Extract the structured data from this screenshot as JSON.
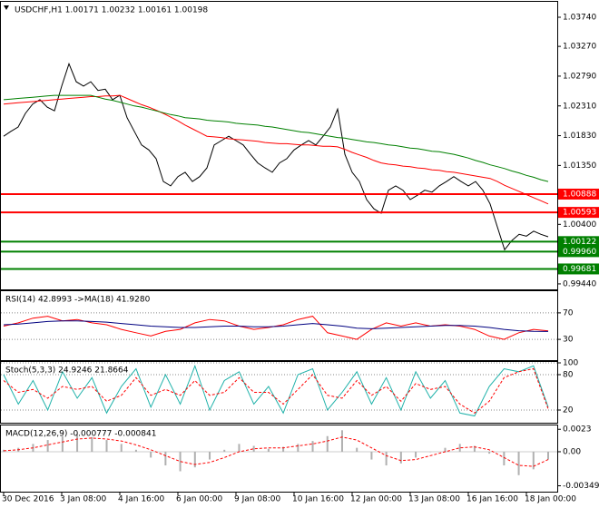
{
  "chart_data": [
    {
      "type": "line",
      "title": "USDCHF,H1  1.00171 1.00232 1.00161 1.00198",
      "categories": [
        "30 Dec 2016",
        null,
        null,
        null,
        null,
        null,
        null,
        null,
        "3 Jan 08:00",
        null,
        null,
        null,
        null,
        null,
        null,
        null,
        "4 Jan 16:00",
        null,
        null,
        null,
        null,
        null,
        null,
        null,
        "6 Jan 00:00",
        null,
        null,
        null,
        null,
        null,
        null,
        null,
        "9 Jan 08:00",
        null,
        null,
        null,
        null,
        null,
        null,
        null,
        "10 Jan 16:00",
        null,
        null,
        null,
        null,
        null,
        null,
        null,
        "12 Jan 00:00",
        null,
        null,
        null,
        null,
        null,
        null,
        null,
        "13 Jan 08:00",
        null,
        null,
        null,
        null,
        null,
        null,
        null,
        "16 Jan 16:00",
        null,
        null,
        null,
        null,
        null,
        null,
        null,
        "18 Jan 00:00",
        null,
        null,
        null
      ],
      "series": [
        {
          "color": "#000000",
          "values": [
            1.0182,
            1.019,
            1.0197,
            1.0219,
            1.0234,
            1.0241,
            1.0229,
            1.0223,
            1.0263,
            1.0299,
            1.027,
            1.0263,
            1.027,
            1.0256,
            1.0258,
            1.0241,
            1.0248,
            1.0212,
            1.019,
            1.0168,
            1.016,
            1.0146,
            1.0109,
            1.0102,
            1.0117,
            1.0124,
            1.0109,
            1.0117,
            1.0131,
            1.0168,
            1.0175,
            1.0182,
            1.0175,
            1.0168,
            1.0153,
            1.0139,
            1.0131,
            1.0124,
            1.0139,
            1.0146,
            1.016,
            1.0168,
            1.0175,
            1.0168,
            1.0182,
            1.0197,
            1.0226,
            1.0153,
            1.0124,
            1.0109,
            1.008,
            1.0065,
            1.0058,
            1.0095,
            1.0102,
            1.0095,
            1.008,
            1.0087,
            1.0095,
            1.0092,
            1.0102,
            1.0109,
            1.0117,
            1.0109,
            1.0102,
            1.0109,
            1.0095,
            1.0073,
            1.0036,
            0.9999,
            1.0014,
            1.0024,
            1.0021,
            1.0029,
            1.0024,
            1.002
          ]
        },
        {
          "color": "#ff0000",
          "values": [
            1.0234,
            1.0235,
            1.0236,
            1.0237,
            1.0238,
            1.0239,
            1.024,
            1.0241,
            1.0242,
            1.0243,
            1.0244,
            1.0245,
            1.0246,
            1.0246,
            1.0247,
            1.0247,
            1.0248,
            1.0243,
            1.0238,
            1.0233,
            1.0229,
            1.0224,
            1.0219,
            1.0213,
            1.0207,
            1.02,
            1.0194,
            1.0188,
            1.0182,
            1.0181,
            1.018,
            1.0178,
            1.0177,
            1.0176,
            1.0175,
            1.0174,
            1.0172,
            1.0171,
            1.017,
            1.017,
            1.0169,
            1.0168,
            1.0168,
            1.0167,
            1.0166,
            1.0166,
            1.0165,
            1.0161,
            1.0156,
            1.0152,
            1.0148,
            1.0143,
            1.0139,
            1.0137,
            1.0136,
            1.0134,
            1.0133,
            1.0131,
            1.013,
            1.0128,
            1.0127,
            1.0125,
            1.0124,
            1.0122,
            1.012,
            1.0118,
            1.0116,
            1.0114,
            1.0109,
            1.0103,
            1.0098,
            1.0093,
            1.0088,
            1.0083,
            1.0078,
            1.0073
          ]
        },
        {
          "color": "#008000",
          "values": [
            1.0241,
            1.0242,
            1.0243,
            1.0244,
            1.0245,
            1.0246,
            1.0247,
            1.0248,
            1.0248,
            1.0248,
            1.0248,
            1.0248,
            1.0248,
            1.0245,
            1.0242,
            1.024,
            1.0237,
            1.0234,
            1.0231,
            1.0229,
            1.0226,
            1.0223,
            1.022,
            1.0217,
            1.0215,
            1.0212,
            1.0211,
            1.021,
            1.0208,
            1.0207,
            1.0206,
            1.0205,
            1.0203,
            1.0202,
            1.0201,
            1.02,
            1.0198,
            1.0197,
            1.0195,
            1.0193,
            1.0191,
            1.0189,
            1.0188,
            1.0186,
            1.0184,
            1.0182,
            1.018,
            1.0179,
            1.0177,
            1.0175,
            1.0173,
            1.0172,
            1.017,
            1.0168,
            1.0167,
            1.0165,
            1.0163,
            1.0162,
            1.016,
            1.0158,
            1.0157,
            1.0155,
            1.0153,
            1.015,
            1.0147,
            1.0143,
            1.014,
            1.0136,
            1.0133,
            1.013,
            1.0126,
            1.0123,
            1.0119,
            1.0116,
            1.0112,
            1.0109
          ]
        }
      ],
      "levels": [
        {
          "value": 1.00888,
          "label": "1.00888",
          "color": "#ff0000"
        },
        {
          "value": 1.00593,
          "label": "1.00593",
          "color": "#ff0000"
        },
        {
          "value": 1.00122,
          "label": "1.00122",
          "color": "#008000"
        },
        {
          "value": 0.9996,
          "label": "0.99960",
          "color": "#008000"
        },
        {
          "value": 0.99681,
          "label": "0.99681",
          "color": "#008000"
        }
      ],
      "ylim": [
        0.99366,
        1.03974
      ],
      "yticks": [
        {
          "value": 1.0374,
          "label": "1.03740"
        },
        {
          "value": 1.0327,
          "label": "1.03270"
        },
        {
          "value": 1.0279,
          "label": "1.02790"
        },
        {
          "value": 1.0231,
          "label": "1.02310"
        },
        {
          "value": 1.0183,
          "label": "1.01830"
        },
        {
          "value": 1.0135,
          "label": "1.01350"
        },
        {
          "value": 1.004,
          "label": "1.00400"
        },
        {
          "value": 0.9944,
          "label": "0.99440"
        }
      ]
    },
    {
      "type": "line",
      "title": "RSI(14) 42.8993  ->MA(18) 41.9280",
      "series": [
        {
          "color": "#ff0000",
          "values": [
            50,
            55,
            62,
            65,
            58,
            60,
            55,
            52,
            45,
            40,
            35,
            42,
            45,
            55,
            60,
            58,
            50,
            45,
            48,
            52,
            60,
            65,
            40,
            35,
            30,
            45,
            55,
            50,
            55,
            50,
            52,
            50,
            45,
            35,
            30,
            40,
            45,
            42.9
          ]
        },
        {
          "color": "#000080",
          "values": [
            52,
            53,
            55,
            57,
            58,
            58,
            57,
            56,
            54,
            52,
            50,
            49,
            48,
            48,
            49,
            50,
            50,
            49,
            49,
            50,
            52,
            54,
            52,
            50,
            47,
            46,
            47,
            48,
            49,
            50,
            51,
            51,
            50,
            48,
            45,
            43,
            42,
            41.9
          ]
        }
      ],
      "ylim": [
        0,
        100
      ],
      "yticks": [
        70,
        30
      ]
    },
    {
      "type": "line",
      "title": "Stoch(5,3,3) 24.9246 21.8664",
      "series": [
        {
          "color": "#20b2aa",
          "values": [
            80,
            30,
            70,
            20,
            85,
            40,
            75,
            15,
            60,
            90,
            25,
            80,
            30,
            95,
            20,
            70,
            85,
            30,
            60,
            15,
            80,
            90,
            20,
            50,
            85,
            30,
            75,
            20,
            85,
            40,
            70,
            15,
            10,
            60,
            90,
            85,
            95,
            25
          ]
        },
        {
          "color": "#ff0000",
          "dash": true,
          "values": [
            70,
            50,
            55,
            40,
            60,
            55,
            60,
            35,
            45,
            75,
            45,
            55,
            45,
            70,
            45,
            50,
            75,
            50,
            50,
            30,
            55,
            80,
            45,
            40,
            70,
            45,
            60,
            35,
            65,
            55,
            60,
            30,
            15,
            35,
            75,
            85,
            90,
            22
          ]
        }
      ],
      "ylim": [
        0,
        100
      ],
      "yticks": [
        100,
        80,
        20
      ]
    },
    {
      "type": "bar",
      "title": "MACD(12,26,9) -0.000777 -0.000841",
      "color": "#b0b0b0",
      "values": [
        0.0002,
        0.0004,
        0.0008,
        0.0012,
        0.0016,
        0.0018,
        0.0015,
        0.0012,
        0.0008,
        0.0002,
        -0.0006,
        -0.0014,
        -0.002,
        -0.0016,
        -0.0008,
        0.0002,
        0.0008,
        0.0006,
        0.0003,
        0.0005,
        0.0008,
        0.0011,
        0.0016,
        0.0022,
        0.0004,
        -0.0008,
        -0.0014,
        -0.0012,
        -0.0006,
        0,
        0.0004,
        0.0008,
        0.0006,
        -0.0002,
        -0.0014,
        -0.0024,
        -0.0018,
        -0.0008
      ],
      "series": [
        {
          "color": "#ff0000",
          "dash": true,
          "values": [
            0.0001,
            0.0002,
            0.0004,
            0.0007,
            0.001,
            0.0013,
            0.0014,
            0.0013,
            0.0011,
            0.0007,
            0.0002,
            -0.0004,
            -0.001,
            -0.0013,
            -0.0011,
            -0.0006,
            0,
            0.0003,
            0.0004,
            0.0004,
            0.0006,
            0.0008,
            0.0011,
            0.0015,
            0.0012,
            0.0004,
            -0.0004,
            -0.0009,
            -0.0008,
            -0.0004,
            0,
            0.0004,
            0.0005,
            0.0002,
            -0.0006,
            -0.0014,
            -0.0015,
            -0.0008
          ]
        }
      ],
      "ylim": [
        -0.004,
        0.0026
      ],
      "yticks": [
        0.0023,
        {
          "value": 0,
          "label": "0.00"
        },
        -0.00349
      ]
    }
  ]
}
